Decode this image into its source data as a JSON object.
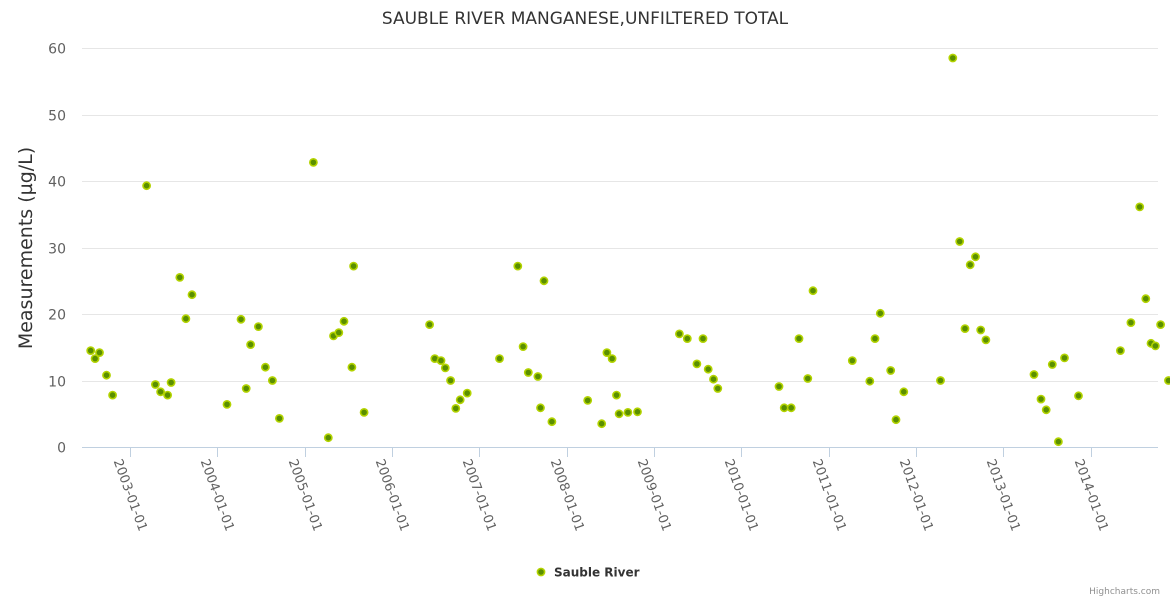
{
  "chart_data": {
    "type": "scatter",
    "title": "SAUBLE RIVER MANGANESE,UNFILTERED TOTAL",
    "xlabel": "",
    "ylabel": "Measurements (µg/L)",
    "ylim": [
      0,
      60
    ],
    "yticks": [
      0,
      10,
      20,
      30,
      40,
      50,
      60
    ],
    "xlim": [
      2002.45,
      2014.77
    ],
    "xtick_labels": [
      "2003-01-01",
      "2004-01-01",
      "2005-01-01",
      "2006-01-01",
      "2007-01-01",
      "2008-01-01",
      "2009-01-01",
      "2010-01-01",
      "2011-01-01",
      "2012-01-01",
      "2013-01-01",
      "2014-01-01"
    ],
    "xtick_values": [
      2003,
      2004,
      2005,
      2006,
      2007,
      2008,
      2009,
      2010,
      2011,
      2012,
      2013,
      2014
    ],
    "legend_position": "bottom-center",
    "grid": true,
    "series": [
      {
        "name": "Sauble River",
        "color": "#5a8f00",
        "points": [
          [
            2002.55,
            14.5
          ],
          [
            2002.6,
            13.3
          ],
          [
            2002.65,
            14.2
          ],
          [
            2002.73,
            10.8
          ],
          [
            2002.8,
            7.8
          ],
          [
            2003.19,
            39.3
          ],
          [
            2003.29,
            9.4
          ],
          [
            2003.35,
            8.3
          ],
          [
            2003.43,
            7.8
          ],
          [
            2003.47,
            9.7
          ],
          [
            2003.57,
            25.5
          ],
          [
            2003.64,
            19.3
          ],
          [
            2003.71,
            22.9
          ],
          [
            2004.11,
            6.4
          ],
          [
            2004.27,
            19.2
          ],
          [
            2004.33,
            8.8
          ],
          [
            2004.38,
            15.4
          ],
          [
            2004.47,
            18.1
          ],
          [
            2004.55,
            12.0
          ],
          [
            2004.63,
            10.0
          ],
          [
            2004.71,
            4.3
          ],
          [
            2005.1,
            42.8
          ],
          [
            2005.27,
            1.4
          ],
          [
            2005.33,
            16.7
          ],
          [
            2005.39,
            17.2
          ],
          [
            2005.45,
            18.9
          ],
          [
            2005.54,
            12.0
          ],
          [
            2005.56,
            27.2
          ],
          [
            2005.68,
            5.2
          ],
          [
            2006.43,
            18.4
          ],
          [
            2006.49,
            13.3
          ],
          [
            2006.56,
            13.0
          ],
          [
            2006.61,
            11.9
          ],
          [
            2006.67,
            10.0
          ],
          [
            2006.73,
            5.8
          ],
          [
            2006.78,
            7.1
          ],
          [
            2006.86,
            8.1
          ],
          [
            2007.23,
            13.3
          ],
          [
            2007.44,
            27.2
          ],
          [
            2007.5,
            15.1
          ],
          [
            2007.56,
            11.2
          ],
          [
            2007.67,
            10.6
          ],
          [
            2007.7,
            5.9
          ],
          [
            2007.74,
            25.0
          ],
          [
            2007.83,
            3.8
          ],
          [
            2008.24,
            7.0
          ],
          [
            2008.4,
            3.5
          ],
          [
            2008.46,
            14.2
          ],
          [
            2008.52,
            13.3
          ],
          [
            2008.57,
            7.8
          ],
          [
            2008.6,
            5.0
          ],
          [
            2008.7,
            5.2
          ],
          [
            2008.81,
            5.3
          ],
          [
            2009.29,
            17.0
          ],
          [
            2009.38,
            16.3
          ],
          [
            2009.49,
            12.5
          ],
          [
            2009.56,
            16.3
          ],
          [
            2009.62,
            11.7
          ],
          [
            2009.68,
            10.2
          ],
          [
            2009.73,
            8.8
          ],
          [
            2010.43,
            9.1
          ],
          [
            2010.49,
            5.9
          ],
          [
            2010.57,
            5.9
          ],
          [
            2010.66,
            16.3
          ],
          [
            2010.76,
            10.3
          ],
          [
            2010.82,
            23.5
          ],
          [
            2011.27,
            13.0
          ],
          [
            2011.47,
            9.9
          ],
          [
            2011.53,
            16.3
          ],
          [
            2011.59,
            20.1
          ],
          [
            2011.71,
            11.5
          ],
          [
            2011.77,
            4.1
          ],
          [
            2011.86,
            8.3
          ],
          [
            2012.28,
            10.0
          ],
          [
            2012.42,
            58.5
          ],
          [
            2012.5,
            30.9
          ],
          [
            2012.56,
            17.8
          ],
          [
            2012.62,
            27.4
          ],
          [
            2012.68,
            28.6
          ],
          [
            2012.74,
            17.6
          ],
          [
            2012.8,
            16.1
          ],
          [
            2013.35,
            10.9
          ],
          [
            2013.43,
            7.2
          ],
          [
            2013.49,
            5.6
          ],
          [
            2013.56,
            12.4
          ],
          [
            2013.63,
            0.8
          ],
          [
            2013.7,
            13.4
          ],
          [
            2013.86,
            7.7
          ],
          [
            2014.34,
            14.5
          ],
          [
            2014.46,
            18.7
          ],
          [
            2014.56,
            36.1
          ],
          [
            2014.63,
            22.3
          ],
          [
            2014.69,
            15.6
          ],
          [
            2014.74,
            15.2
          ],
          [
            2014.8,
            18.4
          ],
          [
            2014.89,
            10.0
          ]
        ]
      }
    ]
  },
  "credits": "Highcharts.com"
}
